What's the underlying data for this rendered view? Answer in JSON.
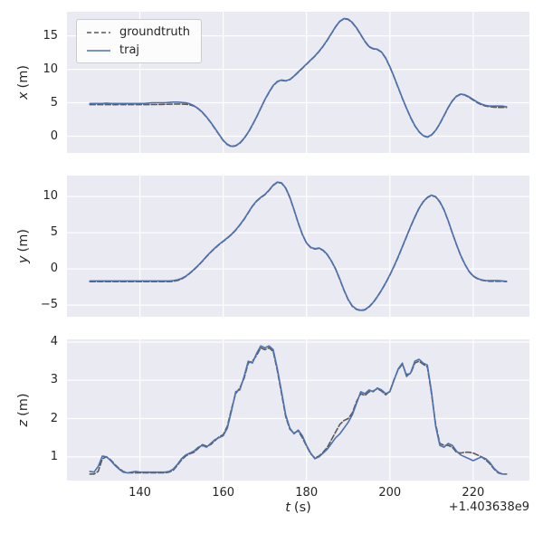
{
  "figure": {
    "bg": "#ffffff",
    "axes_bg": "#eaeaf2",
    "grid_color": "#ffffff",
    "tick_color": "#262626"
  },
  "legend": {
    "entries": [
      {
        "label": "groundtruth",
        "style": "dashed",
        "color": "#595959"
      },
      {
        "label": "traj",
        "style": "solid",
        "color": "#4c72b0"
      }
    ]
  },
  "xlabel": {
    "var": "t",
    "unit": "(s)"
  },
  "offset_text": "+1.403638e9",
  "t_values": [
    128,
    129,
    130,
    131,
    132,
    133,
    134,
    135,
    136,
    137,
    138,
    139,
    140,
    141,
    142,
    143,
    144,
    145,
    146,
    147,
    148,
    149,
    150,
    151,
    152,
    153,
    154,
    155,
    156,
    157,
    158,
    159,
    160,
    161,
    162,
    163,
    164,
    165,
    166,
    167,
    168,
    169,
    170,
    171,
    172,
    173,
    174,
    175,
    176,
    177,
    178,
    179,
    180,
    181,
    182,
    183,
    184,
    185,
    186,
    187,
    188,
    189,
    190,
    191,
    192,
    193,
    194,
    195,
    196,
    197,
    198,
    199,
    200,
    201,
    202,
    203,
    204,
    205,
    206,
    207,
    208,
    209,
    210,
    211,
    212,
    213,
    214,
    215,
    216,
    217,
    218,
    219,
    220,
    221,
    222,
    223,
    224,
    225,
    226,
    227,
    228
  ],
  "chart_data": [
    {
      "type": "line",
      "ylabel_var": "x",
      "ylabel_unit": "(m)",
      "xlim": [
        122.5,
        233.5
      ],
      "ylim": [
        -2.5,
        18.6
      ],
      "xticks": [
        140,
        160,
        180,
        200,
        220
      ],
      "yticks": [
        0,
        5,
        10,
        15
      ],
      "show_xticklabels": false,
      "series": [
        {
          "name": "groundtruth",
          "dash": true,
          "color": "#595959",
          "values": [
            4.72,
            4.72,
            4.72,
            4.73,
            4.72,
            4.72,
            4.71,
            4.72,
            4.72,
            4.72,
            4.72,
            4.72,
            4.73,
            4.72,
            4.72,
            4.73,
            4.74,
            4.75,
            4.76,
            4.78,
            4.8,
            4.82,
            4.8,
            4.78,
            4.7,
            4.5,
            4.1,
            3.55,
            2.85,
            2.05,
            1.15,
            0.25,
            -0.65,
            -1.25,
            -1.55,
            -1.45,
            -1.05,
            -0.35,
            0.55,
            1.65,
            2.85,
            4.15,
            5.45,
            6.55,
            7.55,
            8.15,
            8.35,
            8.25,
            8.45,
            8.95,
            9.55,
            10.15,
            10.75,
            11.35,
            11.95,
            12.65,
            13.45,
            14.35,
            15.35,
            16.35,
            17.15,
            17.55,
            17.45,
            16.95,
            16.15,
            15.15,
            14.15,
            13.35,
            13.05,
            12.95,
            12.55,
            11.65,
            10.35,
            8.85,
            7.25,
            5.65,
            4.15,
            2.75,
            1.55,
            0.65,
            0.05,
            -0.15,
            0.15,
            0.85,
            1.85,
            3.05,
            4.25,
            5.25,
            5.95,
            6.25,
            6.15,
            5.8,
            5.4,
            5.0,
            4.7,
            4.5,
            4.4,
            4.35,
            4.3,
            4.3,
            4.3
          ]
        },
        {
          "name": "traj",
          "dash": false,
          "color": "#4c72b0",
          "values": [
            4.9,
            4.9,
            4.9,
            4.9,
            4.95,
            4.9,
            4.9,
            4.9,
            4.9,
            4.9,
            4.9,
            4.9,
            4.9,
            4.9,
            4.95,
            5.0,
            5.0,
            5.0,
            5.0,
            5.05,
            5.1,
            5.1,
            5.05,
            5.0,
            4.85,
            4.55,
            4.15,
            3.6,
            2.9,
            2.1,
            1.2,
            0.3,
            -0.6,
            -1.2,
            -1.5,
            -1.4,
            -1.0,
            -0.3,
            0.6,
            1.7,
            2.9,
            4.2,
            5.5,
            6.6,
            7.6,
            8.2,
            8.4,
            8.3,
            8.5,
            9.0,
            9.6,
            10.2,
            10.8,
            11.4,
            12.0,
            12.7,
            13.5,
            14.4,
            15.4,
            16.4,
            17.2,
            17.6,
            17.5,
            17.0,
            16.2,
            15.2,
            14.2,
            13.4,
            13.1,
            13.0,
            12.6,
            11.7,
            10.4,
            8.9,
            7.3,
            5.7,
            4.2,
            2.8,
            1.6,
            0.7,
            0.1,
            -0.1,
            0.2,
            0.9,
            1.9,
            3.1,
            4.3,
            5.3,
            6.0,
            6.3,
            6.2,
            5.9,
            5.5,
            5.1,
            4.8,
            4.6,
            4.5,
            4.5,
            4.5,
            4.5,
            4.4
          ]
        }
      ]
    },
    {
      "type": "line",
      "ylabel_var": "y",
      "ylabel_unit": "(m)",
      "xlim": [
        122.5,
        233.5
      ],
      "ylim": [
        -6.6,
        12.9
      ],
      "xticks": [
        140,
        160,
        180,
        200,
        220
      ],
      "yticks": [
        -5,
        0,
        5,
        10
      ],
      "show_xticklabels": false,
      "series": [
        {
          "name": "groundtruth",
          "dash": true,
          "color": "#595959",
          "values": [
            -1.75,
            -1.75,
            -1.75,
            -1.75,
            -1.75,
            -1.75,
            -1.75,
            -1.75,
            -1.75,
            -1.75,
            -1.75,
            -1.75,
            -1.75,
            -1.75,
            -1.75,
            -1.75,
            -1.75,
            -1.75,
            -1.75,
            -1.75,
            -1.7,
            -1.6,
            -1.4,
            -1.05,
            -0.6,
            -0.1,
            0.45,
            1.05,
            1.7,
            2.3,
            2.85,
            3.35,
            3.8,
            4.25,
            4.75,
            5.35,
            6.05,
            6.85,
            7.75,
            8.65,
            9.35,
            9.85,
            10.25,
            10.85,
            11.55,
            11.95,
            11.85,
            11.15,
            9.85,
            8.15,
            6.35,
            4.75,
            3.55,
            2.95,
            2.75,
            2.85,
            2.55,
            1.95,
            1.05,
            -0.05,
            -1.45,
            -2.95,
            -4.25,
            -5.15,
            -5.6,
            -5.75,
            -5.65,
            -5.25,
            -4.65,
            -3.85,
            -2.95,
            -1.95,
            -0.85,
            0.35,
            1.65,
            3.05,
            4.45,
            5.85,
            7.15,
            8.35,
            9.25,
            9.85,
            10.15,
            9.95,
            9.25,
            8.15,
            6.65,
            4.95,
            3.35,
            1.85,
            0.65,
            -0.35,
            -1.0,
            -1.35,
            -1.55,
            -1.65,
            -1.7,
            -1.7,
            -1.7,
            -1.7,
            -1.75
          ]
        },
        {
          "name": "traj",
          "dash": false,
          "color": "#4c72b0",
          "values": [
            -1.65,
            -1.65,
            -1.65,
            -1.65,
            -1.65,
            -1.65,
            -1.65,
            -1.65,
            -1.65,
            -1.65,
            -1.65,
            -1.65,
            -1.65,
            -1.65,
            -1.65,
            -1.65,
            -1.65,
            -1.65,
            -1.65,
            -1.65,
            -1.6,
            -1.5,
            -1.3,
            -1.0,
            -0.55,
            -0.05,
            0.5,
            1.1,
            1.75,
            2.35,
            2.9,
            3.4,
            3.85,
            4.3,
            4.8,
            5.4,
            6.1,
            6.9,
            7.8,
            8.7,
            9.4,
            9.9,
            10.3,
            10.9,
            11.6,
            12.0,
            11.9,
            11.2,
            9.9,
            8.2,
            6.4,
            4.8,
            3.6,
            3.0,
            2.8,
            2.9,
            2.6,
            2.0,
            1.1,
            0.0,
            -1.4,
            -2.9,
            -4.2,
            -5.1,
            -5.55,
            -5.7,
            -5.6,
            -5.2,
            -4.6,
            -3.8,
            -2.9,
            -1.9,
            -0.8,
            0.4,
            1.7,
            3.1,
            4.5,
            5.9,
            7.2,
            8.4,
            9.3,
            9.9,
            10.2,
            10.0,
            9.3,
            8.2,
            6.7,
            5.0,
            3.4,
            1.9,
            0.7,
            -0.3,
            -0.95,
            -1.3,
            -1.5,
            -1.6,
            -1.6,
            -1.6,
            -1.6,
            -1.65,
            -1.7
          ]
        }
      ]
    },
    {
      "type": "line",
      "ylabel_var": "z",
      "ylabel_unit": "(m)",
      "xlim": [
        122.5,
        233.5
      ],
      "ylim": [
        0.38,
        4.07
      ],
      "xticks": [
        140,
        160,
        180,
        200,
        220
      ],
      "yticks": [
        1,
        2,
        3,
        4
      ],
      "show_xticklabels": true,
      "series": [
        {
          "name": "groundtruth",
          "dash": true,
          "color": "#595959",
          "values": [
            0.55,
            0.55,
            0.62,
            0.95,
            1.0,
            0.92,
            0.8,
            0.7,
            0.62,
            0.58,
            0.58,
            0.58,
            0.58,
            0.58,
            0.58,
            0.58,
            0.58,
            0.58,
            0.58,
            0.6,
            0.65,
            0.78,
            0.92,
            1.02,
            1.08,
            1.12,
            1.22,
            1.32,
            1.28,
            1.32,
            1.42,
            1.52,
            1.58,
            1.8,
            2.25,
            2.65,
            2.8,
            3.05,
            3.45,
            3.5,
            3.65,
            3.85,
            3.8,
            3.85,
            3.75,
            3.25,
            2.65,
            2.05,
            1.72,
            1.62,
            1.68,
            1.5,
            1.28,
            1.08,
            0.97,
            1.02,
            1.12,
            1.25,
            1.45,
            1.65,
            1.85,
            1.95,
            2.0,
            2.15,
            2.45,
            2.65,
            2.6,
            2.7,
            2.72,
            2.78,
            2.72,
            2.62,
            2.72,
            3.02,
            3.28,
            3.42,
            3.15,
            3.18,
            3.45,
            3.5,
            3.42,
            3.35,
            2.65,
            1.85,
            1.35,
            1.3,
            1.3,
            1.25,
            1.12,
            1.1,
            1.12,
            1.12,
            1.1,
            1.05,
            1.0,
            0.92,
            0.82,
            0.68,
            0.58,
            0.55,
            0.55
          ]
        },
        {
          "name": "traj",
          "dash": false,
          "color": "#4c72b0",
          "values": [
            0.62,
            0.6,
            0.75,
            1.02,
            1.0,
            0.9,
            0.78,
            0.68,
            0.6,
            0.58,
            0.6,
            0.62,
            0.6,
            0.6,
            0.6,
            0.6,
            0.6,
            0.6,
            0.6,
            0.62,
            0.68,
            0.8,
            0.95,
            1.05,
            1.1,
            1.15,
            1.25,
            1.3,
            1.25,
            1.35,
            1.45,
            1.5,
            1.55,
            1.75,
            2.2,
            2.7,
            2.75,
            3.1,
            3.5,
            3.45,
            3.7,
            3.9,
            3.85,
            3.9,
            3.8,
            3.3,
            2.7,
            2.1,
            1.75,
            1.6,
            1.7,
            1.55,
            1.3,
            1.1,
            0.95,
            1.0,
            1.1,
            1.2,
            1.35,
            1.5,
            1.6,
            1.75,
            1.9,
            2.1,
            2.4,
            2.7,
            2.65,
            2.75,
            2.7,
            2.8,
            2.75,
            2.65,
            2.7,
            3.0,
            3.3,
            3.45,
            3.1,
            3.2,
            3.5,
            3.55,
            3.45,
            3.4,
            2.7,
            1.8,
            1.3,
            1.25,
            1.35,
            1.3,
            1.15,
            1.05,
            1.0,
            0.95,
            0.9,
            0.95,
            1.0,
            0.95,
            0.85,
            0.7,
            0.6,
            0.55,
            0.55
          ]
        }
      ]
    }
  ]
}
